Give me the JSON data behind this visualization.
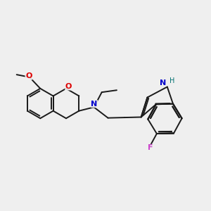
{
  "background_color": "#efefef",
  "bond_color": "#1a1a1a",
  "o_color": "#dd0000",
  "n_color": "#0000cc",
  "f_color": "#cc44cc",
  "nh_color": "#007070",
  "lw": 1.4,
  "fs": 7.5,
  "figsize": [
    3.0,
    3.0
  ],
  "dpi": 100,
  "xlim": [
    0,
    10
  ],
  "ylim": [
    1,
    8.5
  ]
}
